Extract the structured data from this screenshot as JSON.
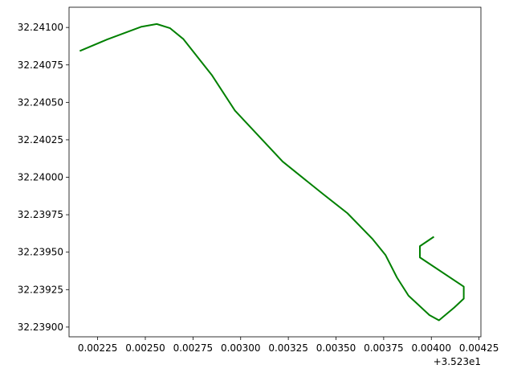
{
  "chart_data": {
    "type": "line",
    "title": "",
    "xlabel": "",
    "ylabel": "",
    "x_offset_text": "+3.523e1",
    "xlim": [
      0.0021,
      0.00426
    ],
    "ylim": [
      32.238935,
      32.241135
    ],
    "x_ticks": [
      0.00225,
      0.0025,
      0.00275,
      0.003,
      0.00325,
      0.0035,
      0.00375,
      0.004,
      0.00425
    ],
    "x_tick_labels": [
      "0.00225",
      "0.00250",
      "0.00275",
      "0.00300",
      "0.00325",
      "0.00350",
      "0.00375",
      "0.00400",
      "0.00425"
    ],
    "y_ticks": [
      32.239,
      32.23925,
      32.2395,
      32.23975,
      32.24,
      32.24025,
      32.2405,
      32.24075,
      32.241
    ],
    "y_tick_labels": [
      "32.23900",
      "32.23925",
      "32.23950",
      "32.23975",
      "32.24000",
      "32.24025",
      "32.24050",
      "32.24075",
      "32.24100"
    ],
    "grid": false,
    "legend": "none",
    "series": [
      {
        "color": "#1f77b4",
        "width": 1.5,
        "x": [
          0.00216,
          0.0023
        ],
        "y": [
          32.240845,
          32.24092
        ]
      },
      {
        "color": "#008000",
        "width": 2,
        "x": [
          0.00216,
          0.0023,
          0.00248,
          0.00256,
          0.00263,
          0.0027,
          0.00285,
          0.00297,
          0.00322,
          0.00343,
          0.00356,
          0.00369,
          0.00376,
          0.00382,
          0.00388,
          0.00399,
          0.00404,
          0.00412,
          0.00417,
          0.00417,
          0.00394,
          0.00394,
          0.00401
        ],
        "y": [
          32.240845,
          32.24092,
          32.241005,
          32.241023,
          32.240995,
          32.240922,
          32.24068,
          32.240445,
          32.240105,
          32.23989,
          32.23976,
          32.23959,
          32.23948,
          32.23933,
          32.23921,
          32.23908,
          32.239045,
          32.23913,
          32.23919,
          32.23927,
          32.239465,
          32.23954,
          32.2396
        ]
      }
    ]
  }
}
